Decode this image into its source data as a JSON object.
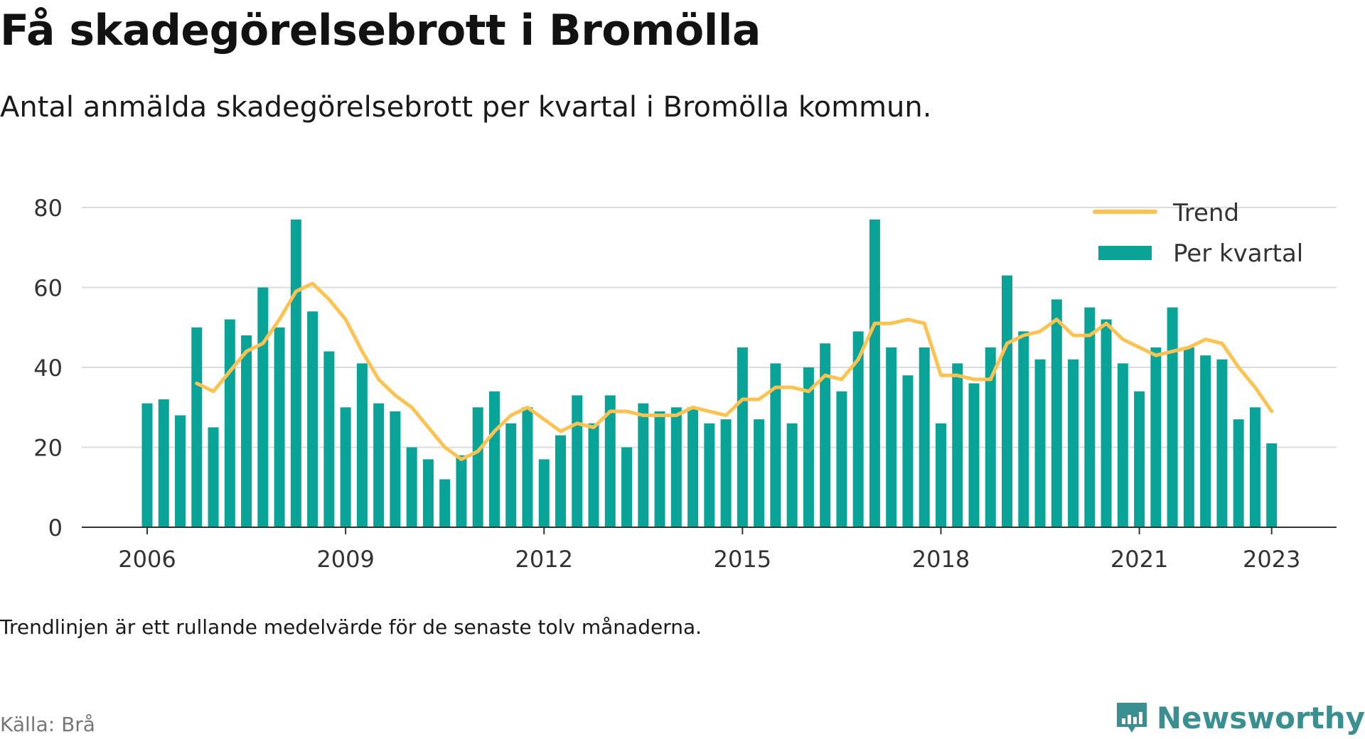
{
  "header": {
    "title": "Få skadegörelsebrott i Bromölla",
    "subtitle": "Antal anmälda skadegörelsebrott per kvartal i Bromölla kommun."
  },
  "footer": {
    "footnote": "Trendlinjen är ett rullande medelvärde för de senaste tolv månaderna.",
    "source": "Källa: Brå",
    "brand": "Newsworthy"
  },
  "colors": {
    "bar": "#0aa398",
    "trend": "#fcc352",
    "grid": "#dcdcdc",
    "axis": "#333333",
    "brand": "#3a8f91"
  },
  "chart_data": {
    "type": "bar",
    "title": "Få skadegörelsebrott i Bromölla",
    "subtitle": "Antal anmälda skadegörelsebrott per kvartal i Bromölla kommun.",
    "xlabel": "",
    "ylabel": "",
    "ylim": [
      0,
      80
    ],
    "yticks": [
      0,
      20,
      40,
      60,
      80
    ],
    "xticks": [
      "2006",
      "2009",
      "2012",
      "2015",
      "2018",
      "2021",
      "2023"
    ],
    "grid": true,
    "legend": {
      "placement": "top-right",
      "entries": [
        "Trend",
        "Per kvartal"
      ]
    },
    "categories": [
      "2006 Q1",
      "2006 Q2",
      "2006 Q3",
      "2006 Q4",
      "2007 Q1",
      "2007 Q2",
      "2007 Q3",
      "2007 Q4",
      "2008 Q1",
      "2008 Q2",
      "2008 Q3",
      "2008 Q4",
      "2009 Q1",
      "2009 Q2",
      "2009 Q3",
      "2009 Q4",
      "2010 Q1",
      "2010 Q2",
      "2010 Q3",
      "2010 Q4",
      "2011 Q1",
      "2011 Q2",
      "2011 Q3",
      "2011 Q4",
      "2012 Q1",
      "2012 Q2",
      "2012 Q3",
      "2012 Q4",
      "2013 Q1",
      "2013 Q2",
      "2013 Q3",
      "2013 Q4",
      "2014 Q1",
      "2014 Q2",
      "2014 Q3",
      "2014 Q4",
      "2015 Q1",
      "2015 Q2",
      "2015 Q3",
      "2015 Q4",
      "2016 Q1",
      "2016 Q2",
      "2016 Q3",
      "2016 Q4",
      "2017 Q1",
      "2017 Q2",
      "2017 Q3",
      "2017 Q4",
      "2018 Q1",
      "2018 Q2",
      "2018 Q3",
      "2018 Q4",
      "2019 Q1",
      "2019 Q2",
      "2019 Q3",
      "2019 Q4",
      "2020 Q1",
      "2020 Q2",
      "2020 Q3",
      "2020 Q4",
      "2021 Q1",
      "2021 Q2",
      "2021 Q3",
      "2021 Q4",
      "2022 Q1",
      "2022 Q2",
      "2022 Q3",
      "2022 Q4",
      "2023 Q1"
    ],
    "series": [
      {
        "name": "Per kvartal",
        "type": "bar",
        "values": [
          31,
          32,
          28,
          50,
          25,
          52,
          48,
          60,
          50,
          77,
          54,
          44,
          30,
          41,
          31,
          29,
          20,
          17,
          12,
          18,
          30,
          34,
          26,
          30,
          17,
          23,
          33,
          26,
          33,
          20,
          31,
          29,
          30,
          30,
          26,
          27,
          45,
          27,
          41,
          26,
          40,
          46,
          34,
          49,
          77,
          45,
          38,
          45,
          26,
          41,
          36,
          45,
          63,
          49,
          42,
          57,
          42,
          55,
          52,
          41,
          34,
          45,
          55,
          45,
          43,
          42,
          27,
          30,
          21
        ]
      },
      {
        "name": "Trend",
        "type": "line",
        "values": [
          null,
          null,
          null,
          36,
          34,
          39,
          44,
          46,
          52,
          59,
          61,
          57,
          52,
          44,
          37,
          33,
          30,
          25,
          20,
          17,
          19,
          24,
          28,
          30,
          27,
          24,
          26,
          25,
          29,
          29,
          28,
          28,
          28,
          30,
          29,
          28,
          32,
          32,
          35,
          35,
          34,
          38,
          37,
          42,
          51,
          51,
          52,
          51,
          38,
          38,
          37,
          37,
          46,
          48,
          49,
          52,
          48,
          48,
          51,
          47,
          45,
          43,
          44,
          45,
          47,
          46,
          40,
          35,
          29
        ]
      }
    ]
  }
}
